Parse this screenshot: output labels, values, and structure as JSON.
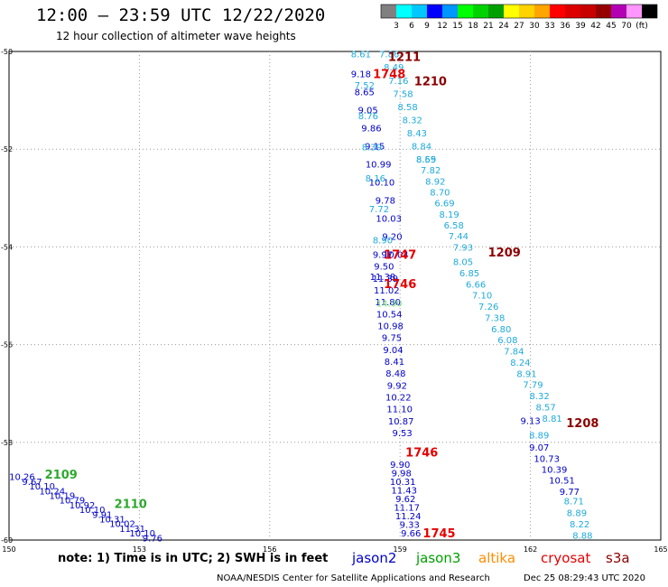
{
  "header": {
    "title": "12:00 – 23:59 UTC 12/22/2020",
    "subtitle": "12 hour collection of altimeter wave heights"
  },
  "color_scale": {
    "colors": [
      "#808080",
      "#00ffff",
      "#00c8ff",
      "#0000ff",
      "#0096ff",
      "#00ff00",
      "#00d200",
      "#00a000",
      "#ffff00",
      "#ffd200",
      "#ffa500",
      "#ff0000",
      "#dc0000",
      "#c80000",
      "#960000",
      "#b400b4",
      "#ff96ff",
      "#000000"
    ],
    "labels": [
      "3",
      "6",
      "9",
      "12",
      "15",
      "18",
      "21",
      "24",
      "27",
      "30",
      "33",
      "36",
      "39",
      "42",
      "45",
      "70",
      "(ft)"
    ]
  },
  "axes": {
    "x_ticks": [
      "150",
      "153",
      "156",
      "159",
      "162",
      "165"
    ],
    "y_ticks": [
      "-50",
      "-52",
      "-54",
      "-56",
      "-58",
      "-60"
    ],
    "lon_range": [
      150,
      165
    ],
    "lat_range": [
      -60,
      -50
    ]
  },
  "colors": {
    "dark_blue": "#0000c8",
    "light_blue": "#1eaadc",
    "green": "#2ea82e",
    "red": "#e60000",
    "dark_red": "#8c0000",
    "light_green": "#7ce67c",
    "grid": "#9a9a9a"
  },
  "pass_labels": [
    {
      "text": "1211",
      "lon": 159.1,
      "lat": -50.1,
      "color": "dark_red"
    },
    {
      "text": "1748",
      "lon": 158.75,
      "lat": -50.45,
      "color": "red"
    },
    {
      "text": "1210",
      "lon": 159.7,
      "lat": -50.6,
      "color": "dark_red"
    },
    {
      "text": "1747",
      "lon": 159.0,
      "lat": -54.15,
      "color": "red"
    },
    {
      "text": "1209",
      "lon": 161.4,
      "lat": -54.1,
      "color": "dark_red"
    },
    {
      "text": "1746",
      "lon": 159.0,
      "lat": -54.75,
      "color": "red"
    },
    {
      "text": "1208",
      "lon": 163.2,
      "lat": -57.6,
      "color": "dark_red"
    },
    {
      "text": "1746",
      "lon": 159.5,
      "lat": -58.2,
      "color": "red"
    },
    {
      "text": "2109",
      "lon": 151.2,
      "lat": -58.65,
      "color": "green"
    },
    {
      "text": "2110",
      "lon": 152.8,
      "lat": -59.25,
      "color": "green"
    },
    {
      "text": "1745",
      "lon": 159.9,
      "lat": -59.85,
      "color": "red"
    }
  ],
  "point_groups": [
    {
      "color": "dark_blue",
      "lon_start": 158.1,
      "lat_start": -50.45,
      "lon_end": 158.9,
      "lat_end": -54.15,
      "values": [
        "9.18",
        "8.65",
        "9.05",
        "9.86",
        "9.15",
        "10.99",
        "10.10",
        "9.78",
        "10.03",
        "9.20",
        "10.04"
      ]
    },
    {
      "color": "light_blue",
      "lon_start": 158.1,
      "lat_start": -50.05,
      "lon_end": 158.6,
      "lat_end": -53.85,
      "values": [
        "8.61",
        "7.52",
        "8.76",
        "8.39",
        "8.16",
        "7.72",
        "8.90"
      ]
    },
    {
      "color": "light_blue",
      "lon_start": 158.75,
      "lat_start": -50.05,
      "lon_end": 159.6,
      "lat_end": -52.2,
      "values": [
        "7.86",
        "8.49",
        "7.16",
        "7.58",
        "8.58",
        "8.32",
        "8.43",
        "8.84",
        "8.69"
      ]
    },
    {
      "color": "light_blue",
      "lon_start": 159.6,
      "lat_start": -52.2,
      "lon_end": 160.45,
      "lat_end": -54.0,
      "values": [
        "8.55",
        "7.82",
        "8.92",
        "8.70",
        "6.69",
        "8.19",
        "6.58",
        "7.44",
        "7.93"
      ]
    },
    {
      "color": "light_blue",
      "lon_start": 160.45,
      "lat_start": -54.3,
      "lon_end": 162.5,
      "lat_end": -57.5,
      "values": [
        "8.05",
        "6.85",
        "6.66",
        "7.10",
        "7.26",
        "7.38",
        "6.80",
        "6.08",
        "7.84",
        "8.24",
        "8.91",
        "7.79",
        "8.32",
        "8.57",
        "8.81"
      ]
    },
    {
      "color": "dark_blue",
      "lon_start": 158.6,
      "lat_start": -54.15,
      "lon_end": 159.05,
      "lat_end": -57.8,
      "values": [
        "9.97",
        "9.50",
        "11.39",
        "11.02",
        "11.80",
        "10.54",
        "10.98",
        "9.75",
        "9.04",
        "8.41",
        "8.48",
        "9.92",
        "10.22",
        "11.10",
        "10.87",
        "9.53"
      ]
    },
    {
      "color": "dark_blue",
      "lon_start": 158.6,
      "lat_start": -54.6,
      "lon_end": 158.6,
      "lat_end": -54.6,
      "values": [
        "11.38"
      ]
    },
    {
      "color": "light_green",
      "lon_start": 158.75,
      "lat_start": -55.15,
      "lon_end": 158.75,
      "lat_end": -55.15,
      "values": [
        "14.00"
      ]
    },
    {
      "color": "dark_blue",
      "lon_start": 159.0,
      "lat_start": -58.45,
      "lon_end": 159.25,
      "lat_end": -59.85,
      "values": [
        "9.90",
        "9.98",
        "10.31",
        "11.43",
        "9.62",
        "11.17",
        "11.24",
        "9.33",
        "9.66"
      ]
    },
    {
      "color": "dark_blue",
      "lon_start": 162.0,
      "lat_start": -57.55,
      "lon_end": 162.15,
      "lat_end": -57.55,
      "values": [
        "9.13"
      ]
    },
    {
      "color": "light_blue",
      "lon_start": 162.2,
      "lat_start": -57.85,
      "lon_end": 162.2,
      "lat_end": -57.85,
      "values": [
        "8.89"
      ]
    },
    {
      "color": "dark_blue",
      "lon_start": 162.2,
      "lat_start": -58.1,
      "lon_end": 162.9,
      "lat_end": -59.0,
      "values": [
        "9.07",
        "10.73",
        "10.39",
        "10.51",
        "9.77"
      ]
    },
    {
      "color": "light_blue",
      "lon_start": 163.0,
      "lat_start": -59.2,
      "lon_end": 163.2,
      "lat_end": -59.9,
      "values": [
        "8.71",
        "8.89",
        "8.22",
        "8.88"
      ]
    },
    {
      "color": "dark_blue",
      "lon_start": 150.3,
      "lat_start": -58.7,
      "lon_end": 153.3,
      "lat_end": -59.95,
      "values": [
        "10.26",
        "9.67",
        "10.10",
        "10.24",
        "10.19",
        "10.79",
        "10.92",
        "10.10",
        "9.91",
        "10.31",
        "10.02",
        "11.31",
        "10.10",
        "9.76"
      ]
    }
  ],
  "footer": {
    "note": "note:  1) Time is in UTC;  2) SWH is in feet",
    "satellites": [
      {
        "name": "jason2",
        "color": "#0000c8",
        "left": 390
      },
      {
        "name": "jason3",
        "color": "#00a000",
        "left": 461
      },
      {
        "name": "altika",
        "color": "#ff8c00",
        "left": 530
      },
      {
        "name": "cryosat",
        "color": "#e60000",
        "left": 599
      },
      {
        "name": "s3a",
        "color": "#8c0000",
        "left": 671
      }
    ],
    "credit": "NOAA/NESDIS Center for Satellite Applications and Research",
    "timestamp": "Dec 25 08:29:43 UTC 2020"
  }
}
